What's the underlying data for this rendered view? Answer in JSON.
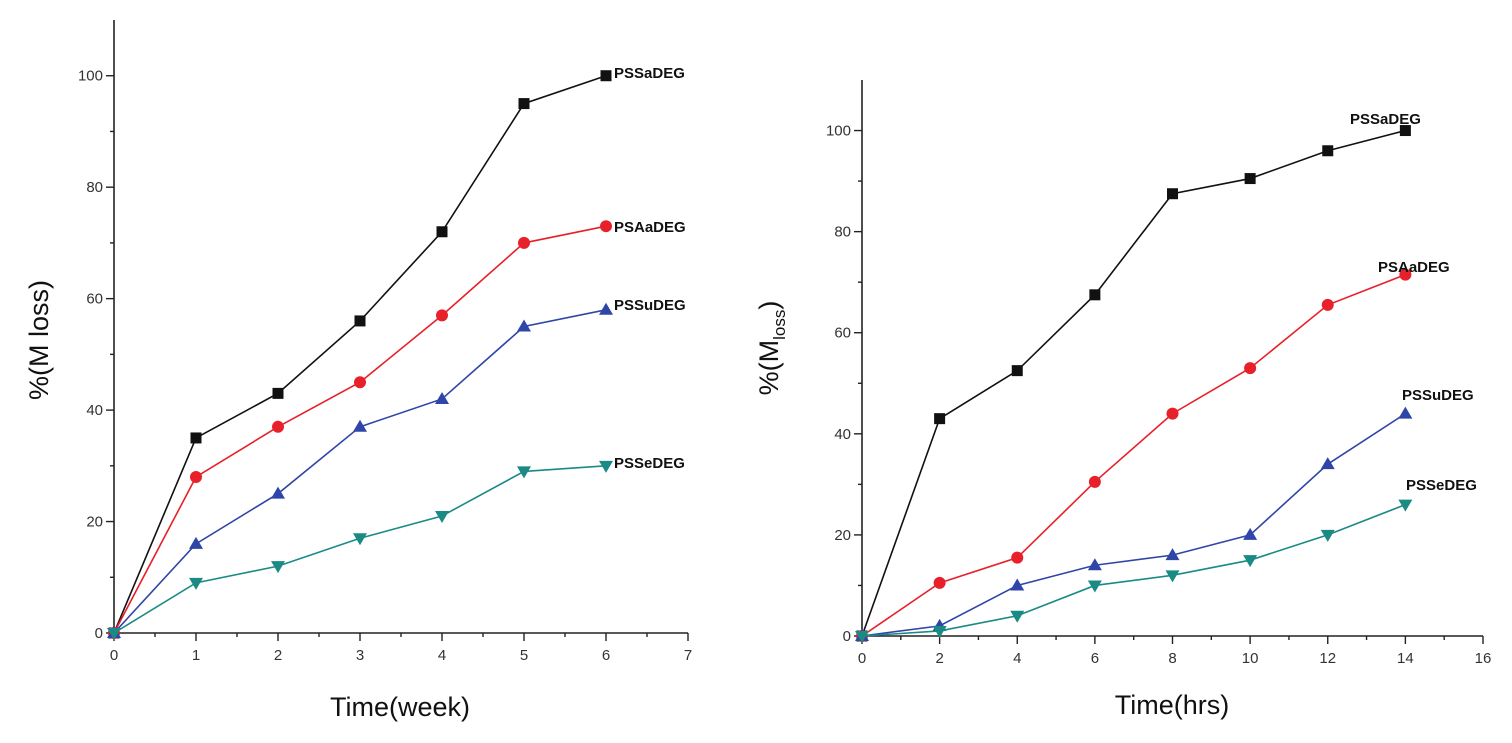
{
  "chart_data": [
    {
      "type": "line",
      "title": "",
      "xlabel": "Time(week)",
      "ylabel": "%(M loss)",
      "xlim": [
        0,
        7
      ],
      "ylim": [
        0,
        110
      ],
      "xticks": [
        0,
        1,
        2,
        3,
        4,
        5,
        6,
        7
      ],
      "yticks": [
        0,
        20,
        40,
        60,
        80,
        100
      ],
      "x": [
        0,
        1,
        2,
        3,
        4,
        5,
        6
      ],
      "series": [
        {
          "name": "PSSaDEG",
          "color": "#111111",
          "marker": "square",
          "values": [
            0,
            35,
            43,
            56,
            72,
            95,
            100
          ]
        },
        {
          "name": "PSAaDEG",
          "color": "#e8202a",
          "marker": "circle",
          "values": [
            0,
            28,
            37,
            45,
            57,
            70,
            73
          ]
        },
        {
          "name": "PSSuDEG",
          "color": "#2f46a8",
          "marker": "triangle-up",
          "values": [
            0,
            16,
            25,
            37,
            42,
            55,
            58
          ]
        },
        {
          "name": "PSSeDEG",
          "color": "#1a8a85",
          "marker": "triangle-down",
          "values": [
            0,
            9,
            12,
            17,
            21,
            29,
            30
          ]
        }
      ]
    },
    {
      "type": "line",
      "title": "",
      "xlabel": "Time(hrs)",
      "ylabel": "%(M",
      "ylabel_sub": "loss",
      "ylabel_close": ")",
      "xlim": [
        0,
        16
      ],
      "ylim": [
        0,
        110
      ],
      "xticks": [
        0,
        2,
        4,
        6,
        8,
        10,
        12,
        14,
        16
      ],
      "yticks": [
        0,
        20,
        40,
        60,
        80,
        100
      ],
      "x": [
        0,
        2,
        4,
        6,
        8,
        10,
        12,
        14
      ],
      "series": [
        {
          "name": "PSSaDEG",
          "color": "#111111",
          "marker": "square",
          "values": [
            0,
            43,
            52.5,
            67.5,
            87.5,
            90.5,
            96,
            100
          ]
        },
        {
          "name": "PSAaDEG",
          "color": "#e8202a",
          "marker": "circle",
          "values": [
            0,
            10.5,
            15.5,
            30.5,
            44,
            53,
            65.5,
            71.5
          ]
        },
        {
          "name": "PSSuDEG",
          "color": "#2f46a8",
          "marker": "triangle-up",
          "values": [
            0,
            2,
            10,
            14,
            16,
            20,
            34,
            44
          ]
        },
        {
          "name": "PSSeDEG",
          "color": "#1a8a85",
          "marker": "triangle-down",
          "values": [
            0,
            1,
            4,
            10,
            12,
            15,
            20,
            26
          ]
        }
      ]
    }
  ]
}
